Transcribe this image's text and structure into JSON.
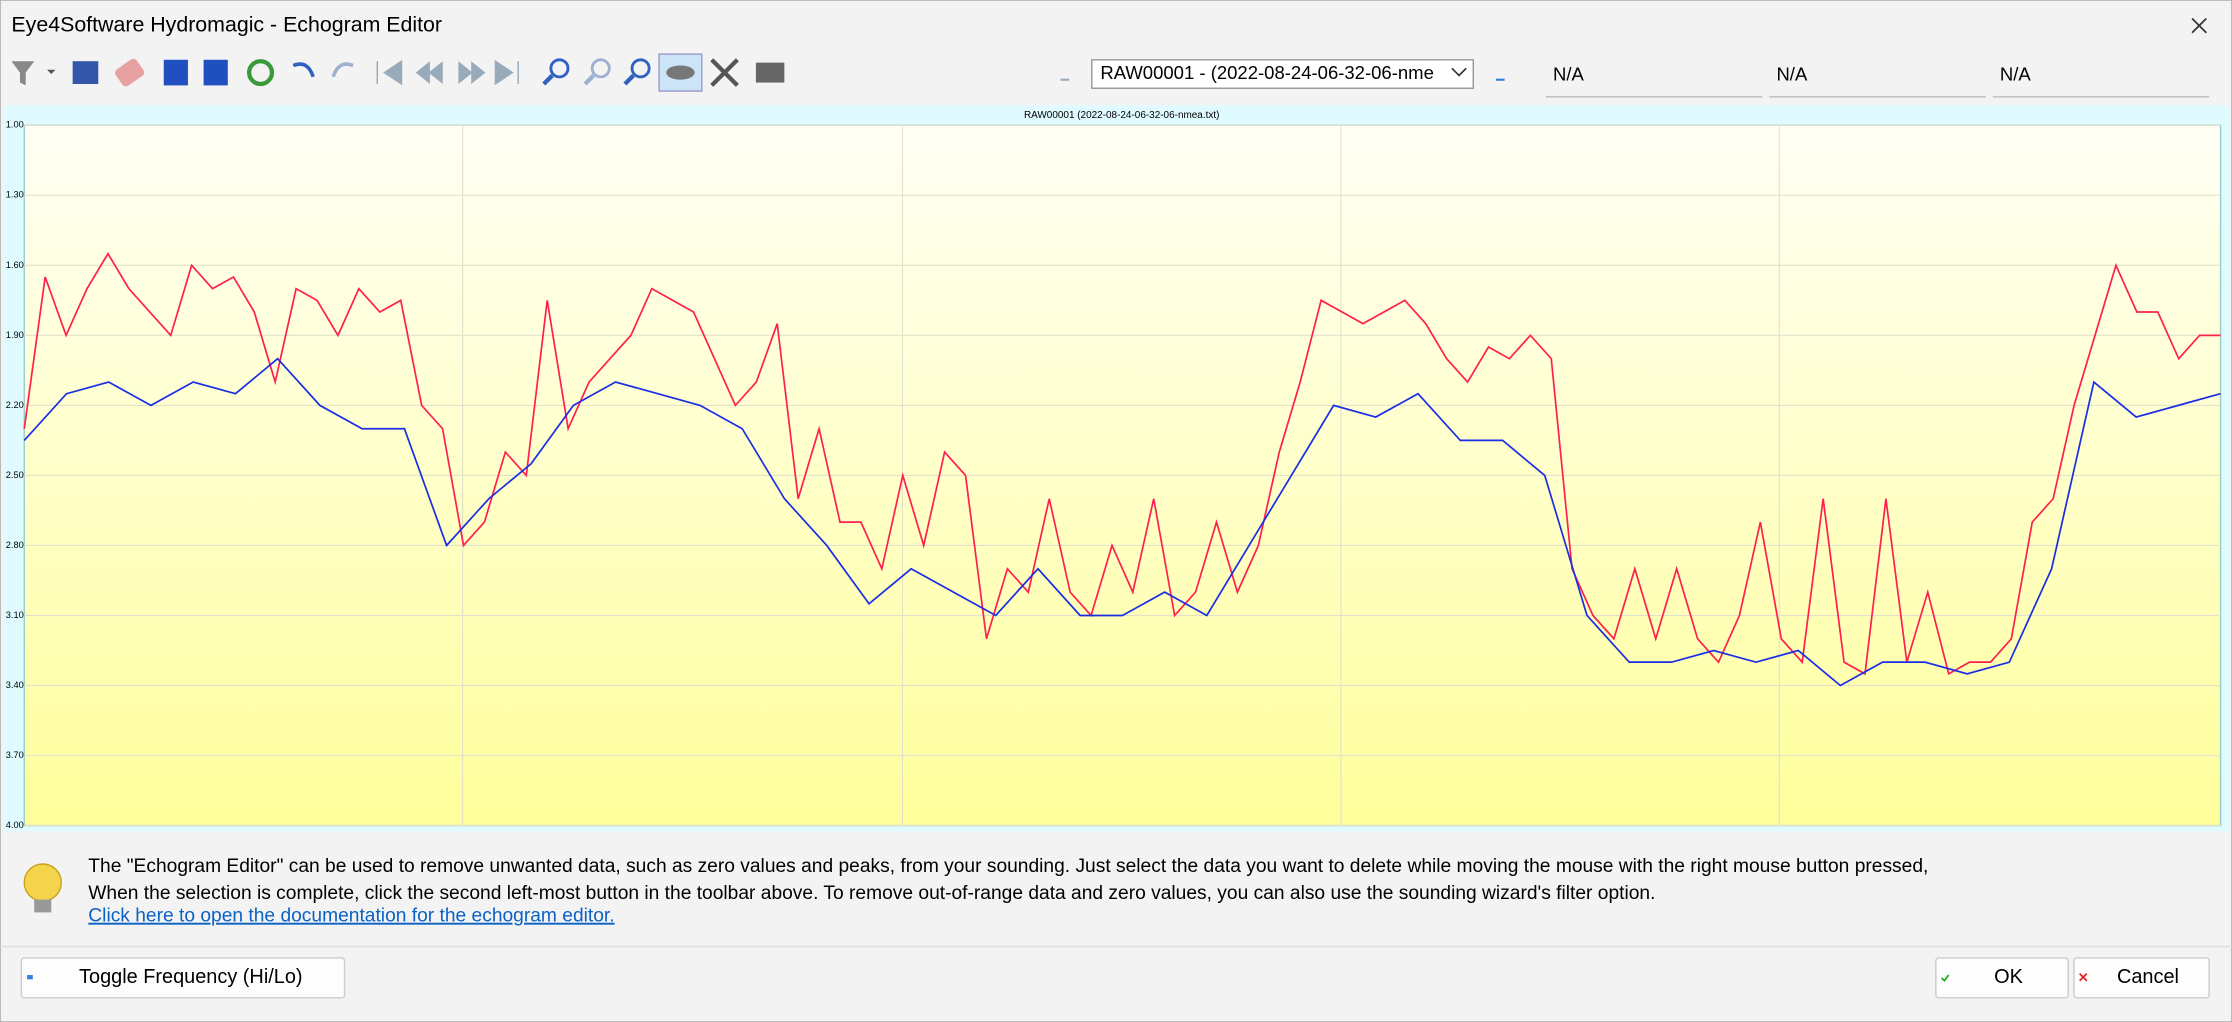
{
  "window": {
    "title": "Eye4Software Hydromagic - Echogram Editor"
  },
  "toolbar": {
    "file_select": "RAW00001 - (2022-08-24-06-32-06-nme",
    "fields": [
      "N/A",
      "N/A",
      "N/A"
    ]
  },
  "chart_data": {
    "type": "line",
    "title": "RAW00001 (2022-08-24-06-32-06-nmea.txt)",
    "ylim": [
      1.0,
      4.0
    ],
    "y_inverted": true,
    "grid": true,
    "yticks": [
      {
        "value": 1.0,
        "label": "1.00"
      },
      {
        "value": 1.3,
        "label": "1.30"
      },
      {
        "value": 1.6,
        "label": "1.60"
      },
      {
        "value": 1.9,
        "label": "1.90"
      },
      {
        "value": 2.2,
        "label": "2.20"
      },
      {
        "value": 2.5,
        "label": "2.50"
      },
      {
        "value": 2.8,
        "label": "2.80"
      },
      {
        "value": 3.1,
        "label": "3.10"
      },
      {
        "value": 3.4,
        "label": "3.40"
      },
      {
        "value": 3.7,
        "label": "3.70"
      },
      {
        "value": 4.0,
        "label": "4.00"
      }
    ],
    "series": [
      {
        "color": "#ff2050",
        "values": [
          2.3,
          1.65,
          1.9,
          1.7,
          1.55,
          1.7,
          1.8,
          1.9,
          1.6,
          1.7,
          1.65,
          1.8,
          2.1,
          1.7,
          1.75,
          1.9,
          1.7,
          1.8,
          1.75,
          2.2,
          2.3,
          2.8,
          2.7,
          2.4,
          2.5,
          1.75,
          2.3,
          2.1,
          2.0,
          1.9,
          1.7,
          1.75,
          1.8,
          2.0,
          2.2,
          2.1,
          1.85,
          2.6,
          2.3,
          2.7,
          2.7,
          2.9,
          2.5,
          2.8,
          2.4,
          2.5,
          3.2,
          2.9,
          3.0,
          2.6,
          3.0,
          3.1,
          2.8,
          3.0,
          2.6,
          3.1,
          3.0,
          2.7,
          3.0,
          2.8,
          2.4,
          2.1,
          1.75,
          1.8,
          1.85,
          1.8,
          1.75,
          1.85,
          2.0,
          2.1,
          1.95,
          2.0,
          1.9,
          2.0,
          2.9,
          3.1,
          3.2,
          2.9,
          3.2,
          2.9,
          3.2,
          3.3,
          3.1,
          2.7,
          3.2,
          3.3,
          2.6,
          3.3,
          3.35,
          2.6,
          3.3,
          3.0,
          3.35,
          3.3,
          3.3,
          3.2,
          2.7,
          2.6,
          2.2,
          1.9,
          1.6,
          1.8,
          1.8,
          2.0,
          1.9,
          1.9
        ]
      },
      {
        "color": "#1a2ee6",
        "values": [
          2.35,
          2.15,
          2.1,
          2.2,
          2.1,
          2.15,
          2.0,
          2.2,
          2.3,
          2.3,
          2.8,
          2.6,
          2.45,
          2.2,
          2.1,
          2.15,
          2.2,
          2.3,
          2.6,
          2.8,
          3.05,
          2.9,
          3.0,
          3.1,
          2.9,
          3.1,
          3.1,
          3.0,
          3.1,
          2.8,
          2.5,
          2.2,
          2.25,
          2.15,
          2.35,
          2.35,
          2.5,
          3.1,
          3.3,
          3.3,
          3.25,
          3.3,
          3.25,
          3.4,
          3.3,
          3.3,
          3.35,
          3.3,
          2.9,
          2.1,
          2.25,
          2.2,
          2.15
        ]
      }
    ]
  },
  "info": {
    "lines": [
      "The \"Echogram Editor\" can be used to remove unwanted data, such as zero values and peaks, from your sounding. Just select the data you want to delete while moving the mouse with the right mouse button pressed,",
      "When the selection is complete, click the second left-most button in the toolbar above. To remove out-of-range data and zero values, you can also use the sounding wizard's filter option."
    ],
    "link": "Click here to open the documentation for the echogram editor."
  },
  "buttons": {
    "toggle": "Toggle Frequency (Hi/Lo)",
    "ok": "OK",
    "cancel": "Cancel"
  }
}
